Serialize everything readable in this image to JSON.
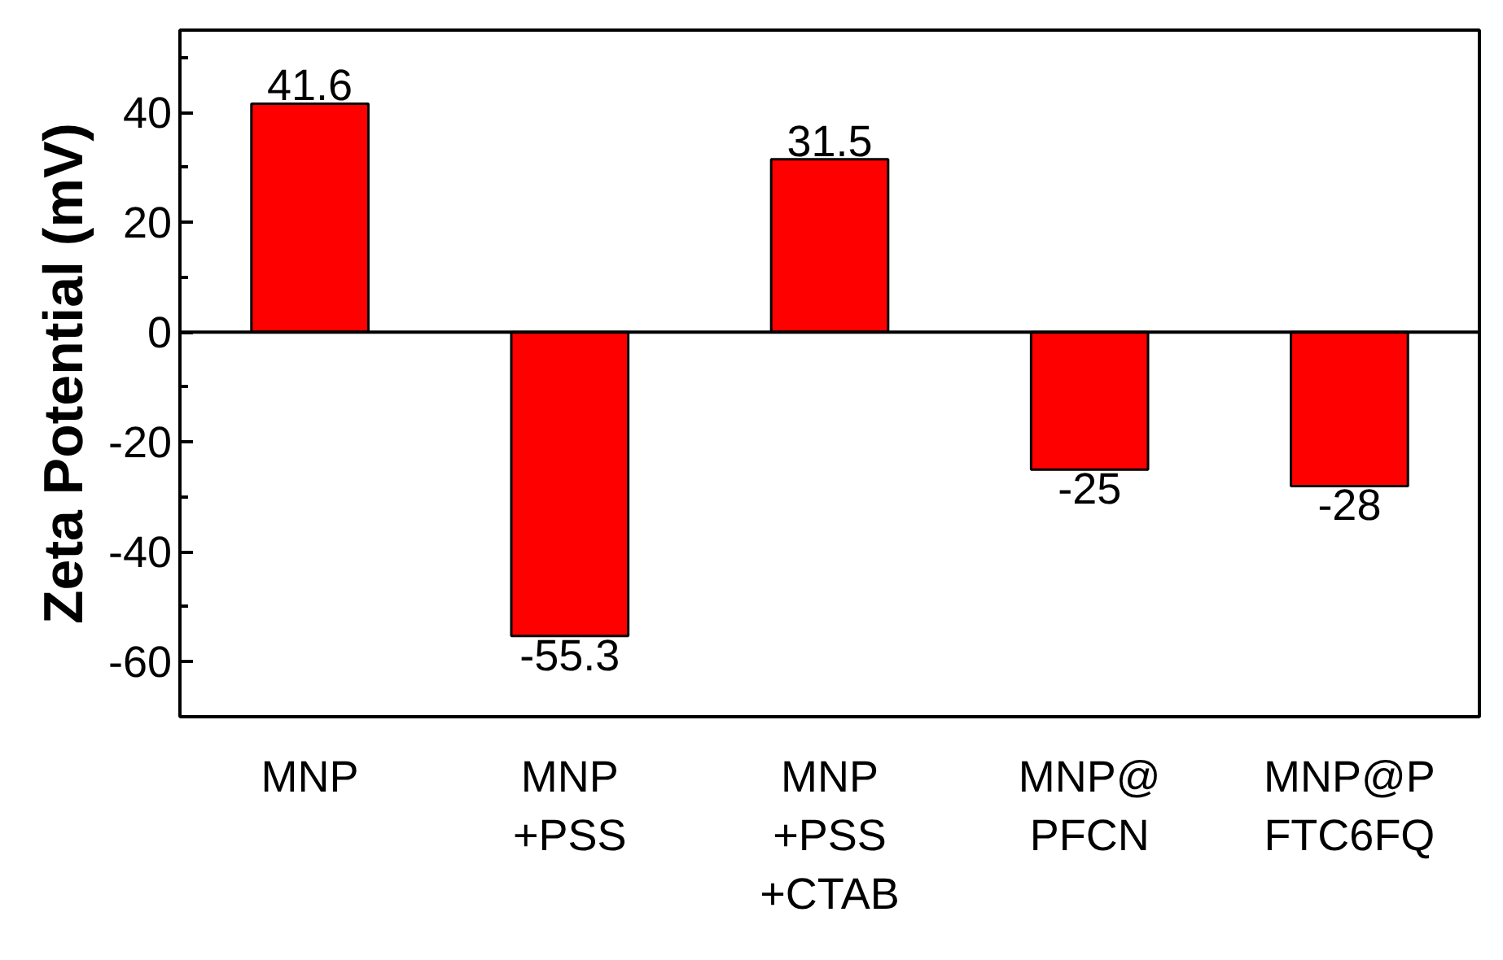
{
  "chart_data": {
    "type": "bar",
    "ylabel": "Zeta Potential (mV)",
    "categories": [
      "MNP",
      "MNP\n+PSS",
      "MNP\n+PSS\n+CTAB",
      "MNP@\nPFCN",
      "MNP@P\nFTC6FQ"
    ],
    "values": [
      41.6,
      -55.3,
      31.5,
      -25,
      -28
    ],
    "color": "#ff0000",
    "data_labels": true,
    "ylim": [
      -70,
      55
    ],
    "yticks": [
      -60,
      -40,
      -20,
      0,
      20,
      40
    ],
    "ref_lines": [
      {
        "axis": "y",
        "value": 0,
        "color": "#000000"
      }
    ],
    "grid": false
  }
}
